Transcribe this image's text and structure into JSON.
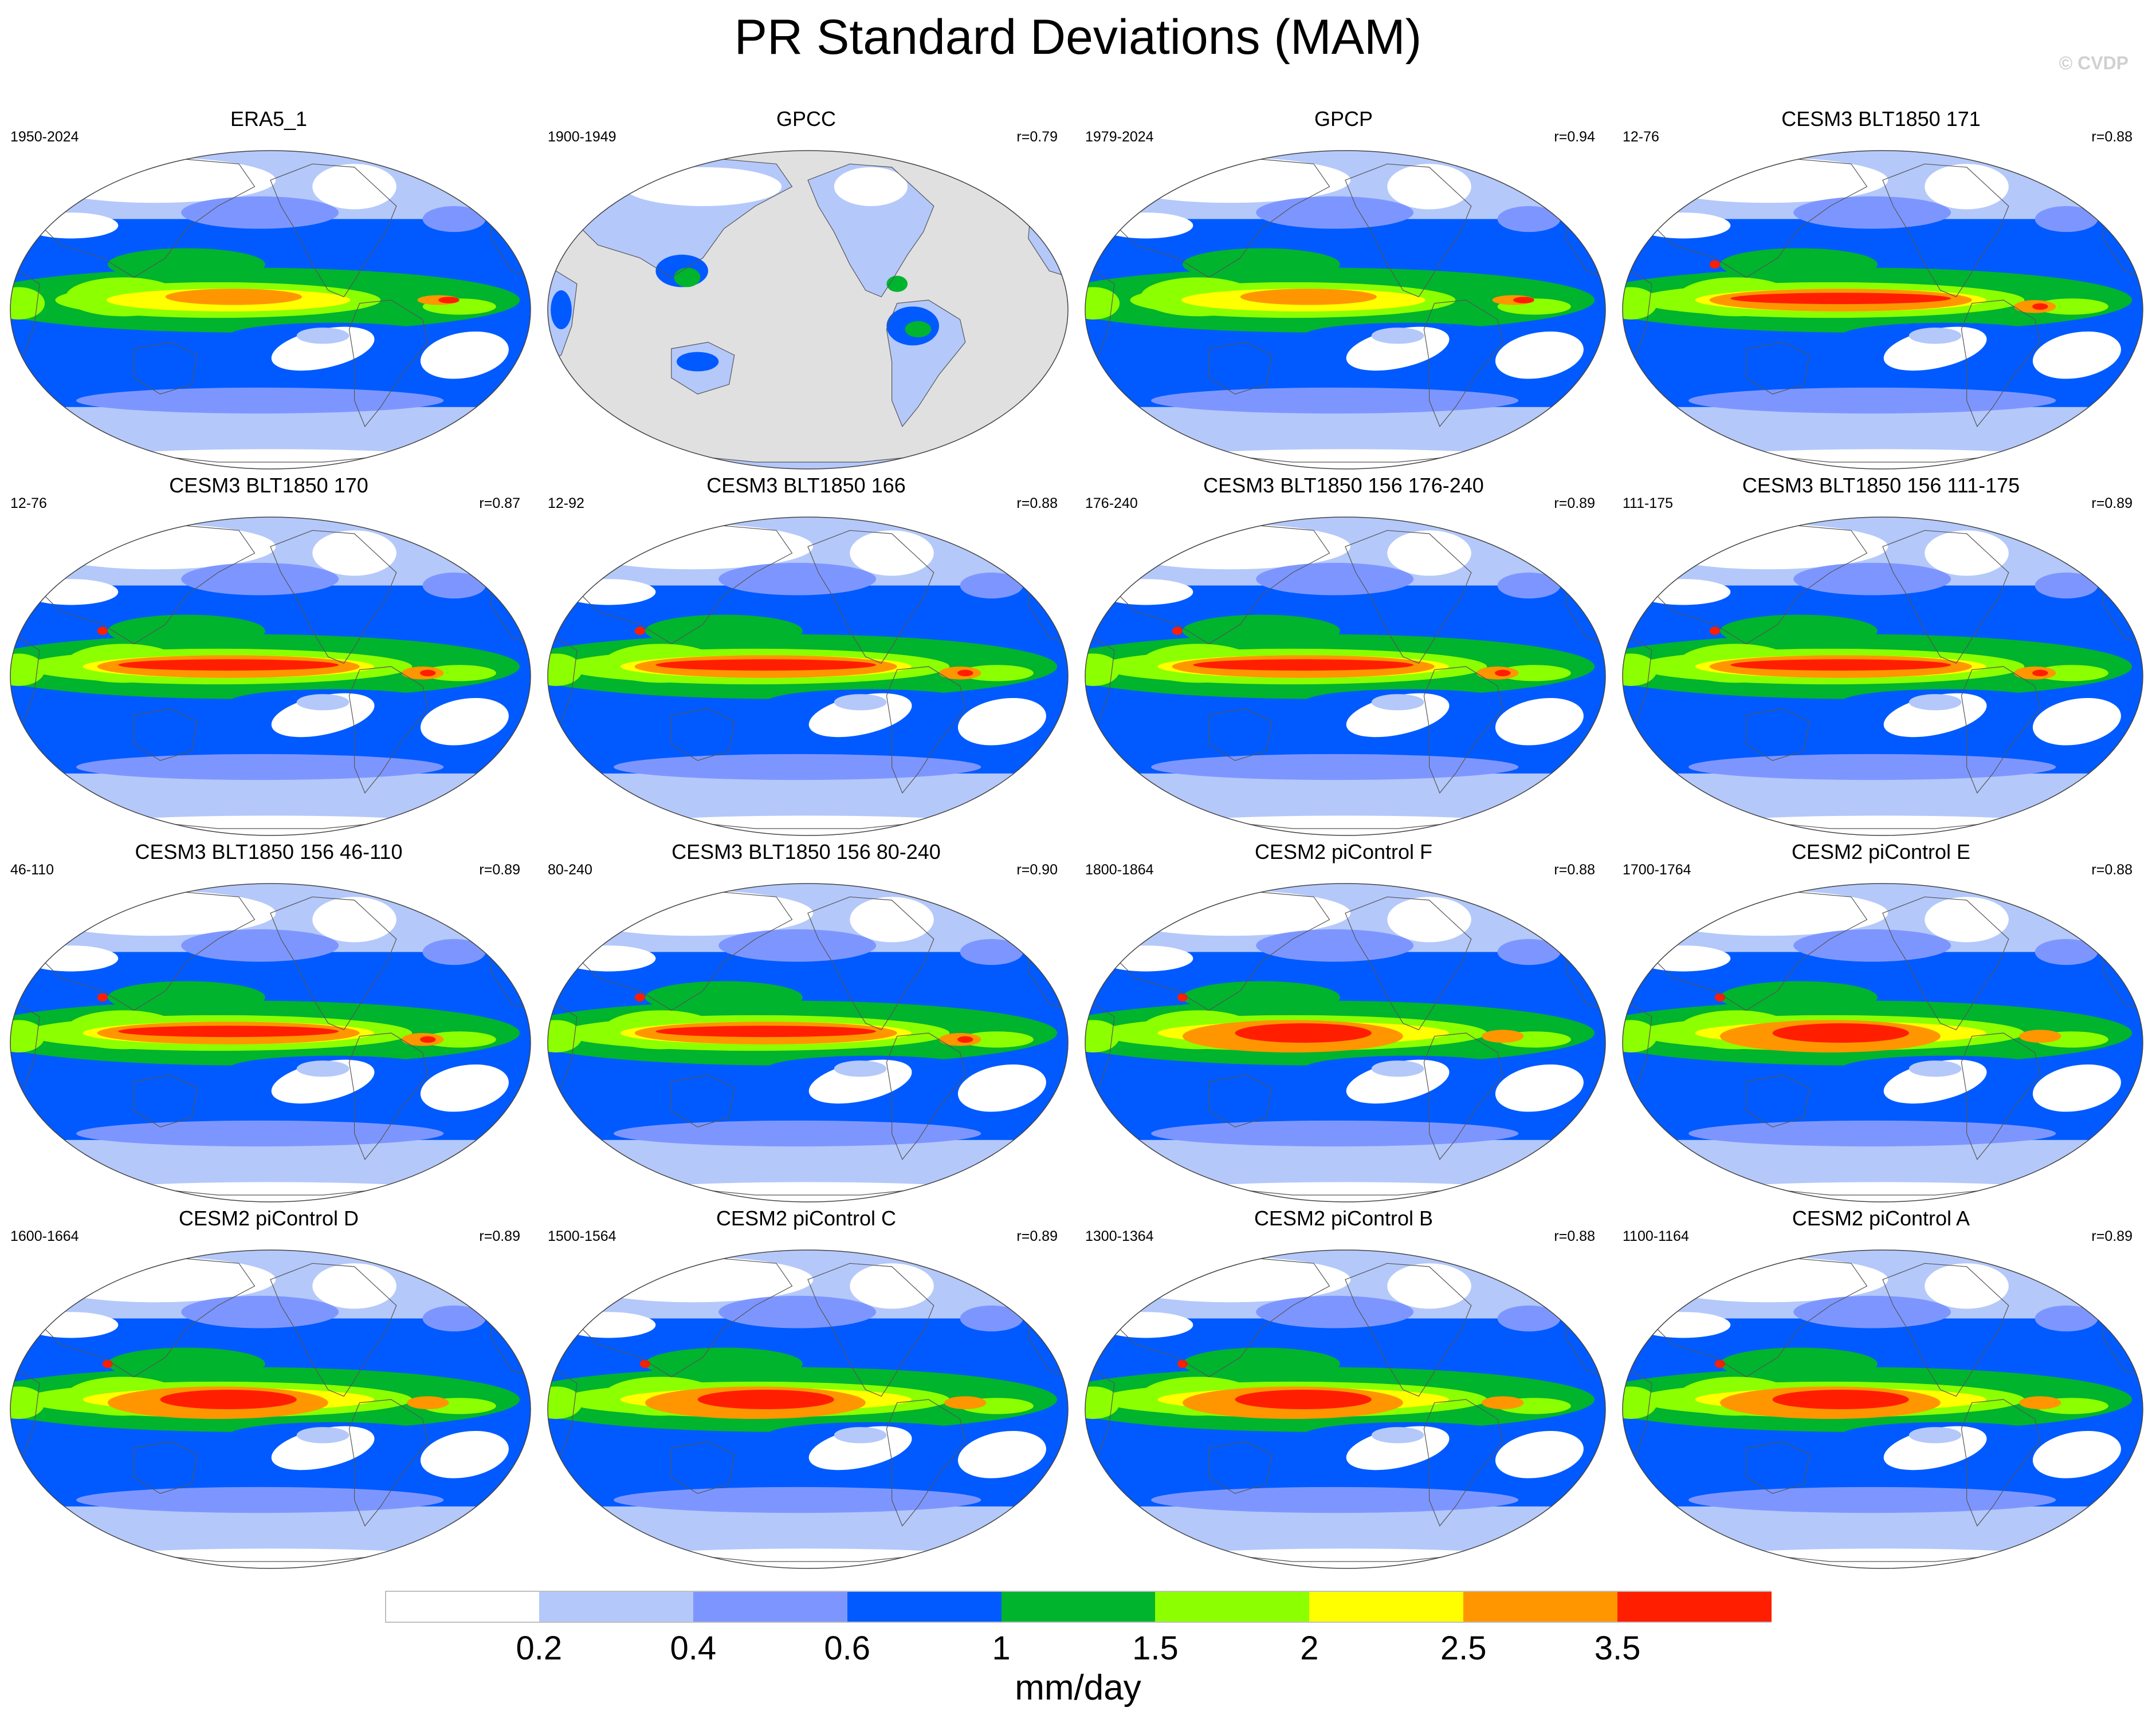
{
  "figure": {
    "title": "PR Standard Deviations (MAM)",
    "watermark": "© CVDP",
    "units": "mm/day"
  },
  "colorbar": {
    "colors": [
      "#ffffff",
      "#b4c8fa",
      "#7d96ff",
      "#005aff",
      "#00b42d",
      "#8cff00",
      "#ffff00",
      "#ff9600",
      "#ff1e00"
    ],
    "tick_labels": [
      "0.2",
      "0.4",
      "0.6",
      "1",
      "1.5",
      "2",
      "2.5",
      "3.5"
    ]
  },
  "map_colors": {
    "land_fill": "#e0e0e0",
    "coastline": "#555555",
    "outline": "#444444"
  },
  "panels": [
    {
      "title": "ERA5_1",
      "period": "1950-2024",
      "corr": "",
      "style": "obs"
    },
    {
      "title": "GPCC",
      "period": "1900-1949",
      "corr": "r=0.79",
      "style": "land"
    },
    {
      "title": "GPCP",
      "period": "1979-2024",
      "corr": "r=0.94",
      "style": "obs"
    },
    {
      "title": "CESM3 BLT1850 171",
      "period": "12-76",
      "corr": "r=0.88",
      "style": "cesm3"
    },
    {
      "title": "CESM3 BLT1850 170",
      "period": "12-76",
      "corr": "r=0.87",
      "style": "cesm3"
    },
    {
      "title": "CESM3 BLT1850 166",
      "period": "12-92",
      "corr": "r=0.88",
      "style": "cesm3"
    },
    {
      "title": "CESM3 BLT1850 156 176-240",
      "period": "176-240",
      "corr": "r=0.89",
      "style": "cesm3"
    },
    {
      "title": "CESM3 BLT1850 156 111-175",
      "period": "111-175",
      "corr": "r=0.89",
      "style": "cesm3"
    },
    {
      "title": "CESM3 BLT1850 156 46-110",
      "period": "46-110",
      "corr": "r=0.89",
      "style": "cesm3"
    },
    {
      "title": "CESM3 BLT1850 156 80-240",
      "period": "80-240",
      "corr": "r=0.90",
      "style": "cesm3"
    },
    {
      "title": "CESM2 piControl F",
      "period": "1800-1864",
      "corr": "r=0.88",
      "style": "cesm2"
    },
    {
      "title": "CESM2 piControl E",
      "period": "1700-1764",
      "corr": "r=0.88",
      "style": "cesm2"
    },
    {
      "title": "CESM2 piControl D",
      "period": "1600-1664",
      "corr": "r=0.89",
      "style": "cesm2"
    },
    {
      "title": "CESM2 piControl C",
      "period": "1500-1564",
      "corr": "r=0.89",
      "style": "cesm2"
    },
    {
      "title": "CESM2 piControl B",
      "period": "1300-1364",
      "corr": "r=0.88",
      "style": "cesm2"
    },
    {
      "title": "CESM2 piControl A",
      "period": "1100-1164",
      "corr": "r=0.89",
      "style": "cesm2"
    }
  ]
}
